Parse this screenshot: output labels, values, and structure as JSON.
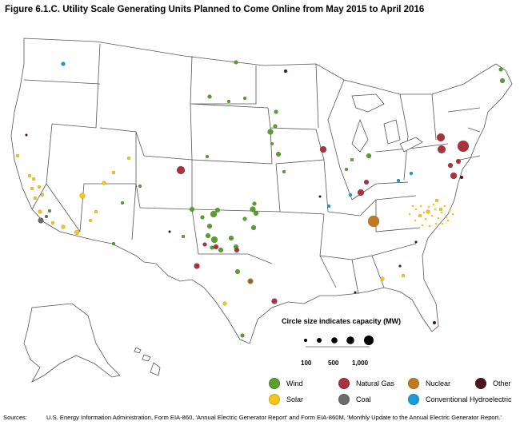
{
  "title": "Figure 6.1.C. Utility Scale Generating Units Planned to Come Online from May 2015 to April 2016",
  "size_legend": {
    "title": "Circle size indicates capacity (MW)",
    "labels": [
      "100",
      "500",
      "1,000"
    ]
  },
  "legend": [
    {
      "key": "wind",
      "label": "Wind",
      "color": "#5a9e32"
    },
    {
      "key": "natural_gas",
      "label": "Natural Gas",
      "color": "#a8323e"
    },
    {
      "key": "nuclear",
      "label": "Nuclear",
      "color": "#c07a22"
    },
    {
      "key": "other",
      "label": "Other",
      "color": "#4a1520"
    },
    {
      "key": "solar",
      "label": "Solar",
      "color": "#f5c518"
    },
    {
      "key": "coal",
      "label": "Coal",
      "color": "#6b6b6b"
    },
    {
      "key": "hydro",
      "label": "Conventional Hydroelectric",
      "color": "#1a9ad6"
    }
  ],
  "sources": {
    "label": "Sources:",
    "text": "U.S. Energy Information Administration, Form EIA-860, 'Annual Electric Generator Report' and Form EIA-860M, 'Monthly Update to the Annual Electric Generator Report.'"
  }
}
